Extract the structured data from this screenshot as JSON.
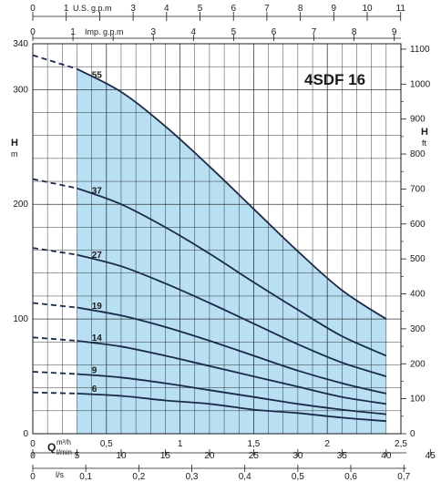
{
  "chart_data": {
    "type": "line",
    "title": "4SDF 16",
    "axes": {
      "left": {
        "title": "H",
        "unit": "m",
        "range": [
          0,
          340
        ],
        "ticks": [
          0,
          100,
          200,
          300,
          340
        ],
        "tick_labels": [
          "0",
          "100",
          "200",
          "300",
          "340"
        ]
      },
      "right": {
        "title": "H",
        "unit": "ft",
        "range": [
          0,
          1100
        ],
        "ticks": [
          0,
          100,
          200,
          300,
          400,
          500,
          600,
          700,
          800,
          900,
          1000,
          1100
        ],
        "tick_labels": [
          "0",
          "100",
          "200",
          "300",
          "400",
          "500",
          "600",
          "700",
          "800",
          "900",
          "1000",
          "1100"
        ]
      },
      "bottom_m3h": {
        "symbol": "Q",
        "unit": "m³/h",
        "range": [
          0,
          2.5
        ],
        "ticks": [
          0,
          0.5,
          1,
          1.5,
          2,
          2.5
        ],
        "tick_labels": [
          "0",
          "0,5",
          "1",
          "1,5",
          "2",
          "2,5"
        ]
      },
      "bottom_lmin": {
        "unit": "l/min",
        "range": [
          0,
          45
        ],
        "ticks": [
          0,
          5,
          10,
          15,
          20,
          25,
          30,
          35,
          40,
          45
        ],
        "tick_labels": [
          "0",
          "5",
          "10",
          "15",
          "20",
          "25",
          "30",
          "35",
          "40",
          "45"
        ]
      },
      "bottom_ls": {
        "unit": "l/s",
        "range": [
          0,
          0.7
        ],
        "ticks": [
          0,
          0.1,
          0.2,
          0.3,
          0.4,
          0.5,
          0.6,
          0.7
        ],
        "tick_labels": [
          "0",
          "0,1",
          "0,2",
          "0,3",
          "0,4",
          "0,5",
          "0,6",
          "0,7"
        ]
      },
      "top_usgpm": {
        "unit": "U.S. g.p.m",
        "range": [
          0,
          11
        ],
        "ticks": [
          0,
          1,
          2,
          3,
          4,
          5,
          6,
          7,
          8,
          9,
          10,
          11
        ],
        "tick_labels": [
          "0",
          "1",
          "",
          "3",
          "4",
          "5",
          "6",
          "7",
          "8",
          "9",
          "10",
          "11"
        ]
      },
      "top_impgpm": {
        "unit": "Imp. g.p.m",
        "range": [
          0,
          9
        ],
        "ticks": [
          0,
          1,
          2,
          3,
          4,
          5,
          6,
          7,
          8,
          9
        ],
        "tick_labels": [
          "0",
          "1",
          "",
          "3",
          "4",
          "5",
          "6",
          "7",
          "8",
          "9"
        ]
      }
    },
    "operating_range_m3h": [
      0.3,
      2.4
    ],
    "x_m3h": [
      0.0,
      0.3,
      0.6,
      0.9,
      1.2,
      1.5,
      1.8,
      2.1,
      2.4
    ],
    "series": [
      {
        "name": "55",
        "values": [
          330,
          318,
          298,
          268,
          233,
          196,
          159,
          125,
          100
        ]
      },
      {
        "name": "37",
        "values": [
          222,
          214,
          200,
          180,
          157,
          132,
          108,
          85,
          68
        ]
      },
      {
        "name": "27",
        "values": [
          162,
          156,
          146,
          131,
          114,
          96,
          78,
          62,
          50
        ]
      },
      {
        "name": "19",
        "values": [
          114,
          110,
          103,
          93,
          81,
          68,
          55,
          44,
          35
        ]
      },
      {
        "name": "14",
        "values": [
          84,
          81,
          76,
          68,
          59,
          50,
          41,
          32,
          26
        ]
      },
      {
        "name": "9",
        "values": [
          54,
          52,
          49,
          44,
          38,
          32,
          26,
          21,
          17
        ]
      },
      {
        "name": "6",
        "values": [
          36,
          35,
          33,
          29,
          26,
          21,
          18,
          14,
          11
        ]
      }
    ],
    "colors": {
      "operating_area": "#b9dff2",
      "curve": "#1a2a4a",
      "grid": "#1a1a1a"
    }
  }
}
